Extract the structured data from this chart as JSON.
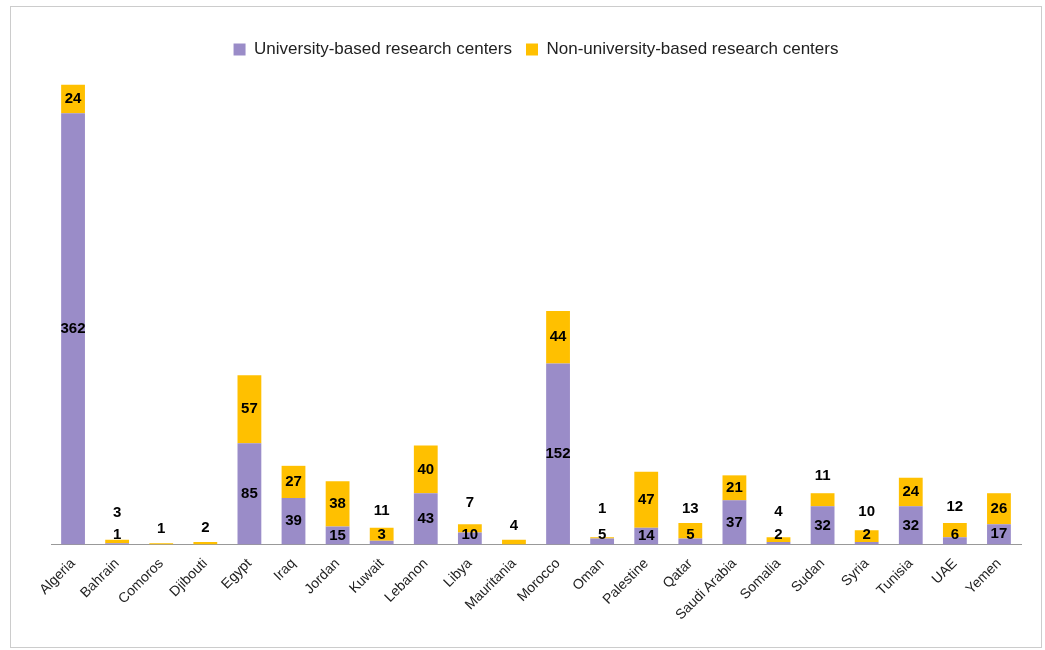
{
  "chart_data": {
    "type": "bar",
    "stacked": true,
    "data_labels": true,
    "legend": "top",
    "grid": false,
    "categories": [
      "Algeria",
      "Bahrain",
      "Comoros",
      "Djibouti",
      "Egypt",
      "Iraq",
      "Jordan",
      "Kuwait",
      "Lebanon",
      "Libya",
      "Mauritania",
      "Morocco",
      "Oman",
      "Palestine",
      "Qatar",
      "Saudi Arabia",
      "Somalia",
      "Sudan",
      "Syria",
      "Tunisia",
      "UAE",
      "Yemen"
    ],
    "series": [
      {
        "name": "University-based research centers",
        "color": "#9a8cc8",
        "values": [
          362,
          1,
          null,
          null,
          85,
          39,
          15,
          3,
          43,
          10,
          null,
          152,
          5,
          14,
          5,
          37,
          2,
          32,
          2,
          32,
          6,
          17
        ]
      },
      {
        "name": "Non-university-based research centers",
        "color": "#ffc000",
        "values": [
          24,
          3,
          1,
          2,
          57,
          27,
          38,
          11,
          40,
          7,
          4,
          44,
          1,
          47,
          13,
          21,
          4,
          11,
          10,
          24,
          12,
          26
        ]
      }
    ]
  }
}
